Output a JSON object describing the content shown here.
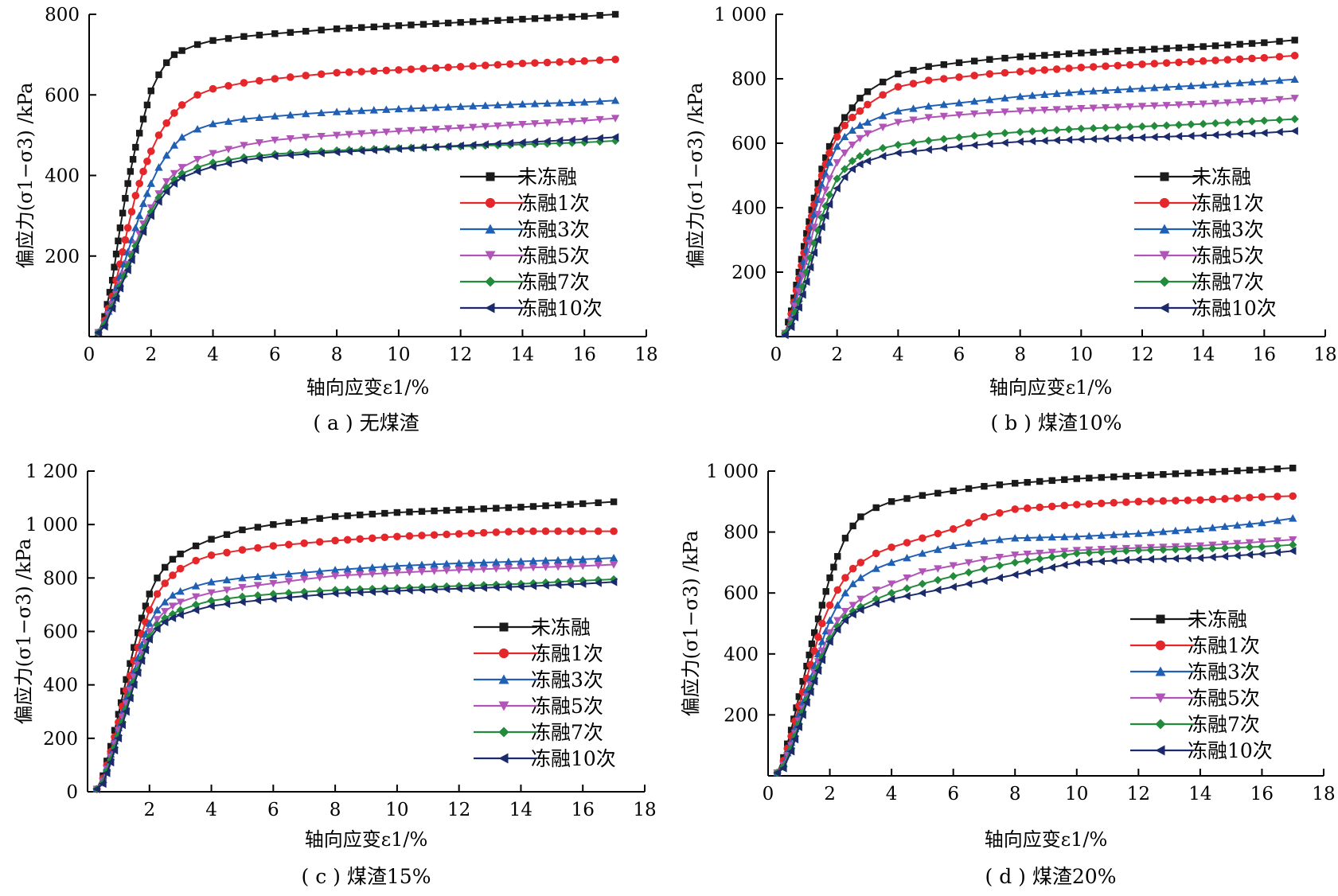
{
  "series_style": [
    {
      "color": "#1a1a1a",
      "marker": "square"
    },
    {
      "color": "#e5262a",
      "marker": "circle"
    },
    {
      "color": "#1f5fb4",
      "marker": "triangle-up"
    },
    {
      "color": "#b154b8",
      "marker": "triangle-down"
    },
    {
      "color": "#228b3c",
      "marker": "diamond"
    },
    {
      "color": "#1b2a6b",
      "marker": "triangle-left"
    }
  ],
  "chart_data": [
    {
      "type": "line",
      "caption": "( a ) 无煤渣",
      "xlabel": "轴向应变ε1/%",
      "ylabel": "偏应力(σ1−σ3) /kPa",
      "xlim": [
        0,
        18
      ],
      "ylim": [
        0,
        800
      ],
      "xticks": [
        0,
        2,
        4,
        6,
        8,
        10,
        12,
        14,
        16,
        18
      ],
      "xtick_labels": [
        "0",
        "2",
        "4",
        "6",
        "8",
        "10",
        "12",
        "14",
        "16",
        "18"
      ],
      "yticks": [
        200,
        400,
        600,
        800
      ],
      "ytick_labels": [
        "200",
        "400",
        "600",
        "800"
      ],
      "legend_position": "right",
      "grid": false,
      "x": [
        0.3,
        0.5,
        0.75,
        1.0,
        1.25,
        1.5,
        1.75,
        2.0,
        2.25,
        2.5,
        2.75,
        3.0,
        3.5,
        4.0,
        5.0,
        6.0,
        7.0,
        8.0,
        10.0,
        12.0,
        14.0,
        16.0,
        17.0
      ],
      "series": [
        {
          "name": "未冻融",
          "values": [
            10,
            50,
            140,
            270,
            380,
            470,
            540,
            610,
            650,
            680,
            700,
            710,
            725,
            735,
            745,
            752,
            758,
            764,
            772,
            780,
            788,
            795,
            800
          ]
        },
        {
          "name": "冻融1次",
          "values": [
            10,
            40,
            100,
            180,
            270,
            350,
            410,
            460,
            500,
            530,
            555,
            575,
            600,
            615,
            630,
            640,
            648,
            655,
            662,
            670,
            678,
            684,
            688
          ]
        },
        {
          "name": "冻融3次",
          "values": [
            10,
            35,
            90,
            150,
            210,
            270,
            330,
            380,
            420,
            450,
            475,
            495,
            515,
            528,
            540,
            547,
            553,
            558,
            565,
            571,
            577,
            582,
            586
          ]
        },
        {
          "name": "冻融5次",
          "values": [
            10,
            30,
            80,
            130,
            180,
            230,
            280,
            320,
            355,
            385,
            405,
            420,
            440,
            455,
            475,
            488,
            495,
            500,
            510,
            518,
            527,
            536,
            542
          ]
        },
        {
          "name": "冻融7次",
          "values": [
            10,
            30,
            75,
            125,
            175,
            225,
            270,
            310,
            345,
            370,
            390,
            405,
            420,
            432,
            445,
            453,
            458,
            462,
            468,
            472,
            477,
            482,
            486
          ]
        },
        {
          "name": "冻融10次",
          "values": [
            10,
            25,
            70,
            120,
            165,
            215,
            260,
            300,
            335,
            360,
            380,
            395,
            410,
            422,
            438,
            448,
            453,
            458,
            466,
            474,
            482,
            490,
            495
          ]
        }
      ]
    },
    {
      "type": "line",
      "caption": "( b ) 煤渣10%",
      "xlabel": "轴向应变ε1/%",
      "ylabel": "偏应力(σ1−σ3) /kPa",
      "xlim": [
        0,
        18
      ],
      "ylim": [
        0,
        1000
      ],
      "xticks": [
        0,
        2,
        4,
        6,
        8,
        10,
        12,
        14,
        16,
        18
      ],
      "xtick_labels": [
        "0",
        "2",
        "4",
        "6",
        "8",
        "10",
        "12",
        "14",
        "16",
        "18"
      ],
      "yticks": [
        200,
        400,
        600,
        800,
        1000
      ],
      "ytick_labels": [
        "200",
        "400",
        "600",
        "800",
        "1 000"
      ],
      "legend_position": "right",
      "grid": false,
      "x": [
        0.3,
        0.5,
        0.75,
        1.0,
        1.25,
        1.5,
        1.75,
        2.0,
        2.25,
        2.5,
        2.75,
        3.0,
        3.5,
        4.0,
        5.0,
        6.0,
        7.0,
        8.0,
        10.0,
        12.0,
        14.0,
        16.0,
        17.0
      ],
      "series": [
        {
          "name": "未冻融",
          "values": [
            10,
            80,
            200,
            320,
            430,
            520,
            590,
            640,
            680,
            710,
            740,
            760,
            790,
            815,
            838,
            850,
            860,
            868,
            880,
            890,
            900,
            912,
            920
          ]
        },
        {
          "name": "冻融1次",
          "values": [
            10,
            70,
            180,
            300,
            410,
            500,
            570,
            620,
            655,
            680,
            700,
            720,
            750,
            775,
            795,
            805,
            815,
            822,
            835,
            845,
            855,
            865,
            872
          ]
        },
        {
          "name": "冻融3次",
          "values": [
            10,
            60,
            160,
            270,
            380,
            470,
            540,
            590,
            620,
            640,
            655,
            665,
            685,
            700,
            715,
            725,
            735,
            745,
            760,
            770,
            780,
            792,
            798
          ]
        },
        {
          "name": "冻融5次",
          "values": [
            10,
            50,
            140,
            240,
            340,
            420,
            490,
            540,
            570,
            595,
            615,
            630,
            650,
            665,
            680,
            688,
            695,
            700,
            708,
            715,
            722,
            732,
            740
          ]
        },
        {
          "name": "冻融7次",
          "values": [
            10,
            40,
            110,
            200,
            290,
            370,
            440,
            490,
            520,
            545,
            560,
            572,
            585,
            595,
            608,
            618,
            628,
            635,
            645,
            652,
            660,
            670,
            675
          ]
        },
        {
          "name": "冻融10次",
          "values": [
            5,
            30,
            90,
            170,
            260,
            340,
            410,
            460,
            495,
            520,
            535,
            545,
            560,
            570,
            580,
            590,
            598,
            605,
            612,
            618,
            624,
            632,
            638
          ]
        }
      ]
    },
    {
      "type": "line",
      "caption": "( c ) 煤渣15%",
      "xlabel": "轴向应变ε1/%",
      "ylabel": "偏应力(σ1−σ3) /kPa",
      "xlim": [
        0,
        18
      ],
      "ylim": [
        0,
        1200
      ],
      "xticks": [
        2,
        4,
        6,
        8,
        10,
        12,
        14,
        16,
        18
      ],
      "xtick_labels": [
        "2",
        "4",
        "6",
        "8",
        "10",
        "12",
        "14",
        "16",
        "18"
      ],
      "yticks": [
        0,
        200,
        400,
        600,
        800,
        1000,
        1200
      ],
      "ytick_labels": [
        "0",
        "200",
        "400",
        "600",
        "800",
        "1 000",
        "1 200"
      ],
      "legend_position": "right",
      "grid": false,
      "x": [
        0.3,
        0.5,
        0.75,
        1.0,
        1.25,
        1.5,
        1.75,
        2.0,
        2.25,
        2.5,
        2.75,
        3.0,
        3.5,
        4.0,
        5.0,
        6.0,
        7.0,
        8.0,
        10.0,
        12.0,
        14.0,
        16.0,
        17.0
      ],
      "series": [
        {
          "name": "未冻融",
          "values": [
            10,
            60,
            170,
            290,
            420,
            540,
            650,
            740,
            800,
            840,
            870,
            890,
            920,
            945,
            980,
            1000,
            1015,
            1030,
            1045,
            1055,
            1065,
            1078,
            1085
          ]
        },
        {
          "name": "冻融1次",
          "values": [
            10,
            50,
            150,
            260,
            380,
            490,
            590,
            680,
            740,
            780,
            810,
            835,
            865,
            885,
            905,
            920,
            930,
            940,
            955,
            965,
            975,
            975,
            975
          ]
        },
        {
          "name": "冻融3次",
          "values": [
            10,
            45,
            140,
            240,
            350,
            450,
            550,
            630,
            680,
            710,
            735,
            750,
            770,
            785,
            800,
            810,
            820,
            830,
            845,
            855,
            862,
            870,
            875
          ]
        },
        {
          "name": "冻融5次",
          "values": [
            10,
            40,
            130,
            230,
            330,
            430,
            520,
            600,
            645,
            675,
            695,
            710,
            730,
            745,
            765,
            780,
            795,
            808,
            820,
            830,
            838,
            845,
            850
          ]
        },
        {
          "name": "冻融7次",
          "values": [
            10,
            35,
            120,
            210,
            310,
            410,
            500,
            580,
            625,
            650,
            665,
            680,
            700,
            715,
            730,
            740,
            748,
            755,
            762,
            770,
            778,
            790,
            795
          ]
        },
        {
          "name": "冻融10次",
          "values": [
            10,
            30,
            110,
            200,
            300,
            400,
            490,
            570,
            610,
            635,
            650,
            662,
            680,
            695,
            710,
            722,
            732,
            742,
            752,
            760,
            768,
            778,
            785
          ]
        }
      ]
    },
    {
      "type": "line",
      "caption": "( d ) 煤渣20%",
      "xlabel": "轴向应变ε1/%",
      "ylabel": "偏应力(σ1−σ3) /kPa",
      "xlim": [
        0,
        18
      ],
      "ylim": [
        0,
        1000
      ],
      "xticks": [
        0,
        2,
        4,
        6,
        8,
        10,
        12,
        14,
        16,
        18
      ],
      "xtick_labels": [
        "0",
        "2",
        "4",
        "6",
        "8",
        "10",
        "12",
        "14",
        "16",
        "18"
      ],
      "yticks": [
        200,
        400,
        600,
        800,
        1000
      ],
      "ytick_labels": [
        "200",
        "400",
        "600",
        "800",
        "1 000"
      ],
      "legend_position": "right",
      "grid": false,
      "x": [
        0.3,
        0.5,
        0.75,
        1.0,
        1.25,
        1.5,
        1.75,
        2.0,
        2.25,
        2.5,
        2.75,
        3.0,
        3.5,
        4.0,
        5.0,
        6.0,
        7.0,
        8.0,
        10.0,
        12.0,
        14.0,
        16.0,
        17.0
      ],
      "series": [
        {
          "name": "未冻融",
          "values": [
            10,
            60,
            150,
            260,
            360,
            470,
            560,
            650,
            720,
            780,
            820,
            850,
            880,
            900,
            920,
            935,
            950,
            960,
            975,
            985,
            995,
            1005,
            1010
          ]
        },
        {
          "name": "冻融1次",
          "values": [
            10,
            50,
            130,
            230,
            320,
            410,
            500,
            560,
            610,
            650,
            680,
            700,
            730,
            750,
            780,
            810,
            850,
            875,
            890,
            900,
            905,
            915,
            918
          ]
        },
        {
          "name": "冻融3次",
          "values": [
            10,
            40,
            110,
            200,
            280,
            360,
            440,
            510,
            560,
            600,
            630,
            650,
            680,
            700,
            730,
            755,
            770,
            780,
            785,
            795,
            810,
            830,
            845
          ]
        },
        {
          "name": "冻融5次",
          "values": [
            10,
            35,
            100,
            180,
            260,
            340,
            410,
            470,
            510,
            540,
            560,
            580,
            610,
            630,
            670,
            690,
            710,
            725,
            740,
            748,
            755,
            768,
            775
          ]
        },
        {
          "name": "冻融7次",
          "values": [
            10,
            30,
            90,
            170,
            250,
            320,
            390,
            450,
            490,
            520,
            540,
            555,
            580,
            600,
            630,
            655,
            680,
            700,
            730,
            740,
            745,
            752,
            758
          ]
        },
        {
          "name": "冻融10次",
          "values": [
            10,
            25,
            80,
            160,
            240,
            310,
            380,
            440,
            480,
            510,
            530,
            545,
            565,
            580,
            600,
            620,
            640,
            660,
            700,
            710,
            715,
            728,
            738
          ]
        }
      ]
    }
  ]
}
